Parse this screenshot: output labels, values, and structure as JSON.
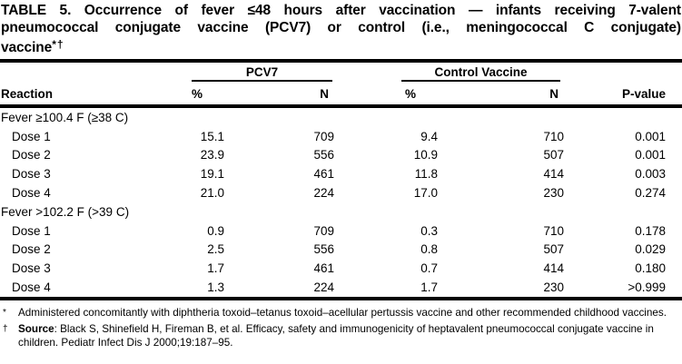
{
  "title": {
    "lines": [
      "TABLE 5. Occurrence of fever ≤48 hours after vaccination — infants receiving 7-valent",
      "pneumococcal conjugate vaccine (PCV7) or control (i.e., meningococcal C conjugate)",
      "vaccine"
    ],
    "marker": "*†"
  },
  "table": {
    "group_headers": {
      "pcv7": "PCV7",
      "control": "Control Vaccine"
    },
    "columns": {
      "reaction": "Reaction",
      "pcv7_pct": "%",
      "pcv7_n": "N",
      "control_pct": "%",
      "control_n": "N",
      "p_value": "P-value"
    },
    "sections": [
      {
        "category": "Fever ≥100.4 F (≥38 C)",
        "rows": [
          {
            "label": "Dose 1",
            "pcv7_pct": "15.1",
            "pcv7_n": "709",
            "control_pct": "9.4",
            "control_n": "710",
            "p_value": "0.001"
          },
          {
            "label": "Dose 2",
            "pcv7_pct": "23.9",
            "pcv7_n": "556",
            "control_pct": "10.9",
            "control_n": "507",
            "p_value": "0.001"
          },
          {
            "label": "Dose 3",
            "pcv7_pct": "19.1",
            "pcv7_n": "461",
            "control_pct": "11.8",
            "control_n": "414",
            "p_value": "0.003"
          },
          {
            "label": "Dose 4",
            "pcv7_pct": "21.0",
            "pcv7_n": "224",
            "control_pct": "17.0",
            "control_n": "230",
            "p_value": "0.274"
          }
        ]
      },
      {
        "category": "Fever >102.2 F (>39 C)",
        "rows": [
          {
            "label": "Dose 1",
            "pcv7_pct": "0.9",
            "pcv7_n": "709",
            "control_pct": "0.3",
            "control_n": "710",
            "p_value": "0.178"
          },
          {
            "label": "Dose 2",
            "pcv7_pct": "2.5",
            "pcv7_n": "556",
            "control_pct": "0.8",
            "control_n": "507",
            "p_value": "0.029"
          },
          {
            "label": "Dose 3",
            "pcv7_pct": "1.7",
            "pcv7_n": "461",
            "control_pct": "0.7",
            "control_n": "414",
            "p_value": "0.180"
          },
          {
            "label": "Dose 4",
            "pcv7_pct": "1.3",
            "pcv7_n": "224",
            "control_pct": "1.7",
            "control_n": "230",
            "p_value": ">0.999"
          }
        ]
      }
    ]
  },
  "footnotes": [
    {
      "marker": "*",
      "text": "Administered concomitantly with diphtheria toxoid–tetanus toxoid–acellular pertussis vaccine and other recommended childhood vaccines."
    },
    {
      "marker": "†",
      "bold": "Source",
      "text": ": Black S, Shinefield H, Fireman B, et al. Efficacy, safety and immunogenicity of heptavalent pneumococcal conjugate vaccine in children. Pediatr Infect Dis J 2000;19:187–95."
    }
  ]
}
